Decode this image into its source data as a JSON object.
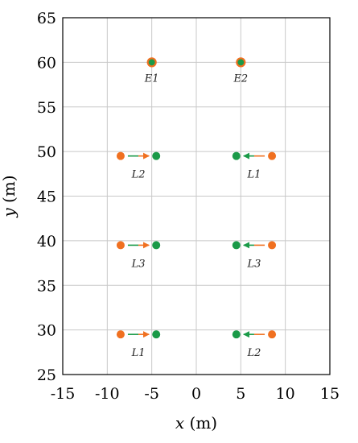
{
  "chart_data": {
    "type": "scatter",
    "title": "",
    "xlabel_var": "x",
    "xlabel_unit": " (m)",
    "ylabel_var": "y",
    "ylabel_unit": " (m)",
    "xlim": [
      -15,
      15
    ],
    "ylim": [
      25,
      65
    ],
    "xticks": [
      -15,
      -10,
      -5,
      0,
      5,
      10,
      15
    ],
    "yticks": [
      25,
      30,
      35,
      40,
      45,
      50,
      55,
      60,
      65
    ],
    "grid": true,
    "colors": {
      "orange": "#f07020",
      "green": "#1a9a48",
      "grid": "#c8c8c8",
      "axis": "#000000"
    },
    "emitters": [
      {
        "label": "E1",
        "x": -5,
        "y": 60
      },
      {
        "label": "E2",
        "x": 5,
        "y": 60
      }
    ],
    "moves": [
      {
        "label": "L2",
        "from": [
          -8.5,
          49.5
        ],
        "to": [
          -4.5,
          49.5
        ]
      },
      {
        "label": "L1",
        "from": [
          8.5,
          49.5
        ],
        "to": [
          4.5,
          49.5
        ]
      },
      {
        "label": "L3",
        "from": [
          -8.5,
          39.5
        ],
        "to": [
          -4.5,
          39.5
        ]
      },
      {
        "label": "L3",
        "from": [
          8.5,
          39.5
        ],
        "to": [
          4.5,
          39.5
        ]
      },
      {
        "label": "L1",
        "from": [
          -8.5,
          29.5
        ],
        "to": [
          -4.5,
          29.5
        ]
      },
      {
        "label": "L2",
        "from": [
          8.5,
          29.5
        ],
        "to": [
          4.5,
          29.5
        ]
      }
    ]
  }
}
